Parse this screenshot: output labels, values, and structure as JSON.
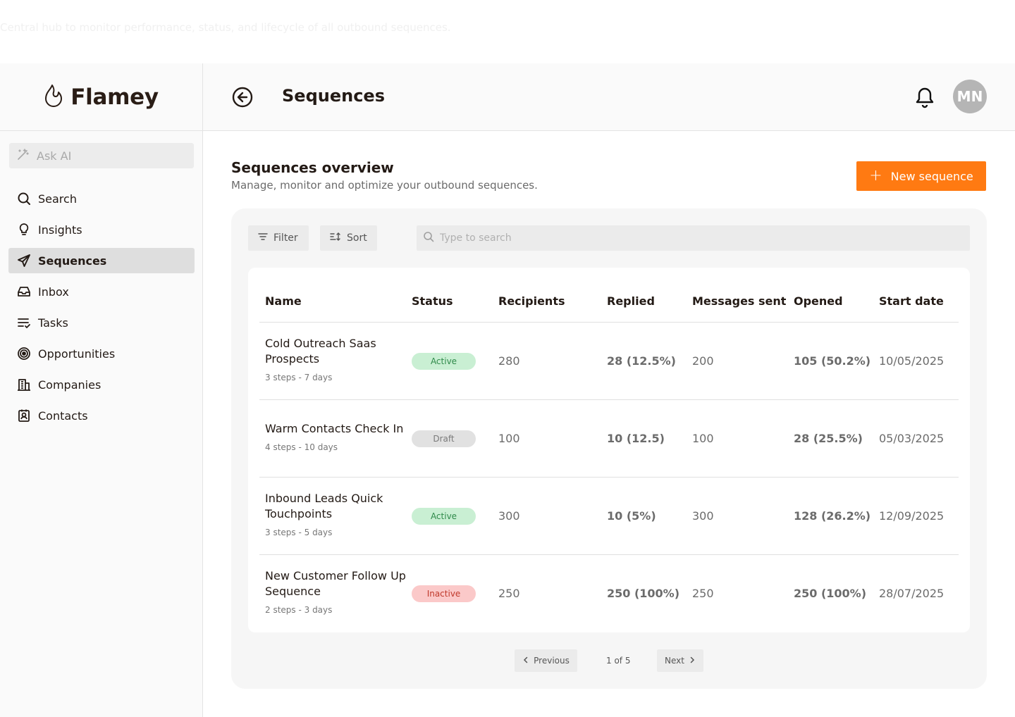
{
  "caption": "Central hub to monitor performance, status, and lifecycle of all outbound sequences.",
  "brand": {
    "name": "Flamey"
  },
  "sidebar": {
    "ask_ai": "Ask AI",
    "items": [
      {
        "label": "Search",
        "icon": "search-icon",
        "active": false
      },
      {
        "label": "Insights",
        "icon": "lightbulb-icon",
        "active": false
      },
      {
        "label": "Sequences",
        "icon": "send-icon",
        "active": true
      },
      {
        "label": "Inbox",
        "icon": "inbox-icon",
        "active": false
      },
      {
        "label": "Tasks",
        "icon": "tasks-icon",
        "active": false
      },
      {
        "label": "Opportunities",
        "icon": "target-icon",
        "active": false
      },
      {
        "label": "Companies",
        "icon": "building-icon",
        "active": false
      },
      {
        "label": "Contacts",
        "icon": "contact-icon",
        "active": false
      }
    ]
  },
  "header": {
    "title": "Sequences",
    "avatar_initials": "MN"
  },
  "main": {
    "title": "Sequences overview",
    "subtitle": "Manage, monitor and optimize your outbound sequences.",
    "new_button": "New sequence",
    "filter": "Filter",
    "sort": "Sort",
    "search_placeholder": "Type to search"
  },
  "table": {
    "columns": [
      "Name",
      "Status",
      "Recipients",
      "Replied",
      "Messages sent",
      "Opened",
      "Start date"
    ],
    "rows": [
      {
        "name": "Cold Outreach Saas Prospects",
        "meta": "3 steps - 7 days",
        "status": "Active",
        "recipients": "280",
        "replied": "28 (12.5%)",
        "messages_sent": "200",
        "opened": "105 (50.2%)",
        "start_date": "10/05/2025"
      },
      {
        "name": "Warm Contacts Check In",
        "meta": "4 steps - 10 days",
        "status": "Draft",
        "recipients": "100",
        "replied": "10 (12.5)",
        "messages_sent": "100",
        "opened": "28 (25.5%)",
        "start_date": "05/03/2025"
      },
      {
        "name": "Inbound Leads Quick Touchpoints",
        "meta": "3 steps - 5 days",
        "status": "Active",
        "recipients": "300",
        "replied": "10 (5%)",
        "messages_sent": "300",
        "opened": "128 (26.2%)",
        "start_date": "12/09/2025"
      },
      {
        "name": "New Customer Follow Up Sequence",
        "meta": "2 steps - 3 days",
        "status": "Inactive",
        "recipients": "250",
        "replied": "250 (100%)",
        "messages_sent": "250",
        "opened": "250 (100%)",
        "start_date": "28/07/2025"
      }
    ]
  },
  "status_colors": {
    "Active": {
      "bg": "#c9efd3",
      "fg": "#2f8a4a"
    },
    "Draft": {
      "bg": "#e1e1e1",
      "fg": "#7a7a7a"
    },
    "Inactive": {
      "bg": "#fbc9c9",
      "fg": "#c0392b"
    }
  },
  "accent_color": "#ff7a12",
  "pagination": {
    "previous": "Previous",
    "label": "1 of 5",
    "next": "Next"
  }
}
